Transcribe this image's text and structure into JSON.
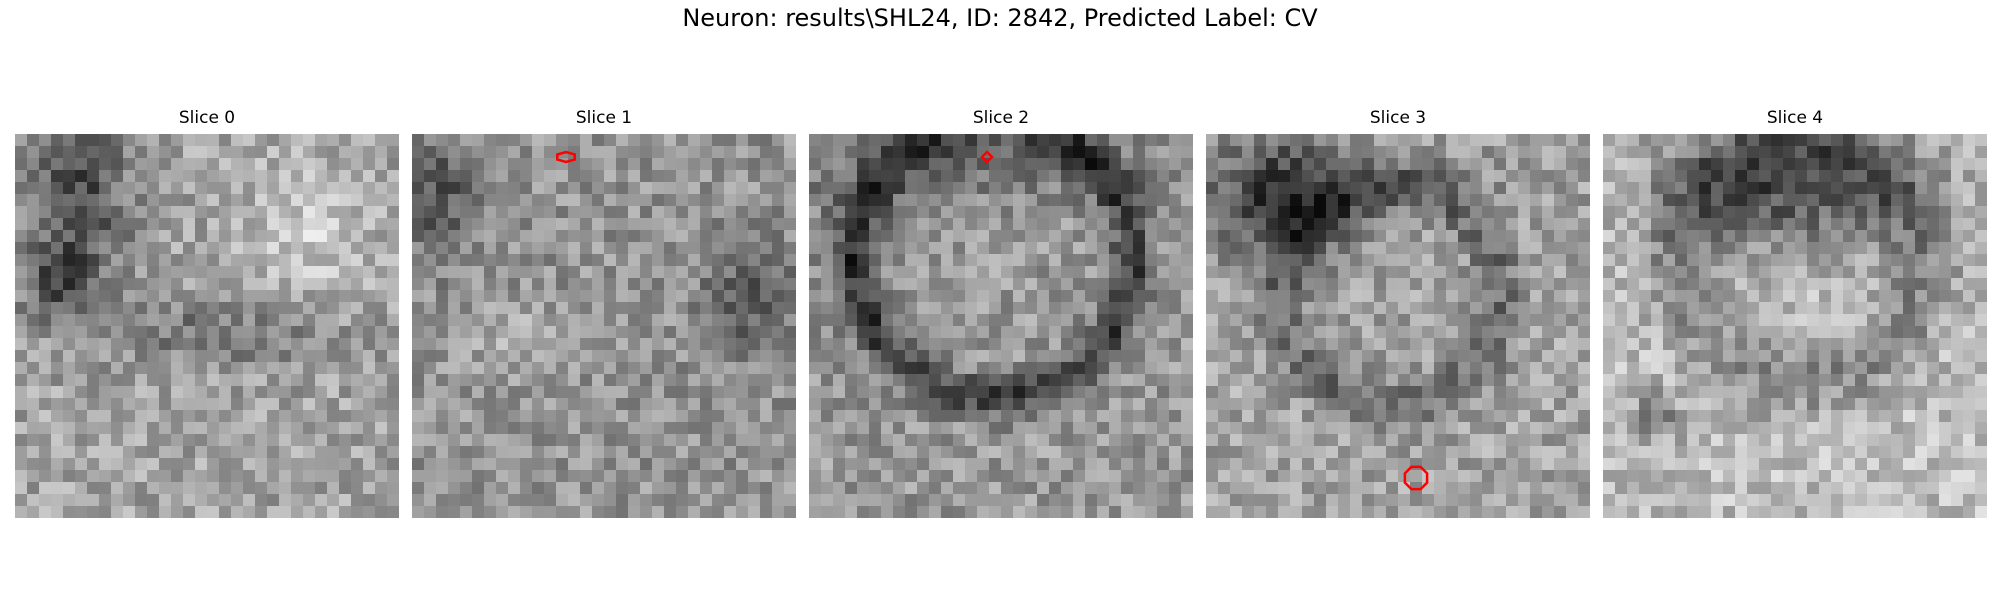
{
  "figure": {
    "title": "Neuron: results\\SHL24, ID: 2842, Predicted Label: CV"
  },
  "panels": [
    {
      "title": "Slice 0"
    },
    {
      "title": "Slice 1"
    },
    {
      "title": "Slice 2"
    },
    {
      "title": "Slice 3"
    },
    {
      "title": "Slice 4"
    }
  ],
  "colors": {
    "background": "#ffffff",
    "marker": "#ff0000",
    "colormap": "grayscale"
  }
}
